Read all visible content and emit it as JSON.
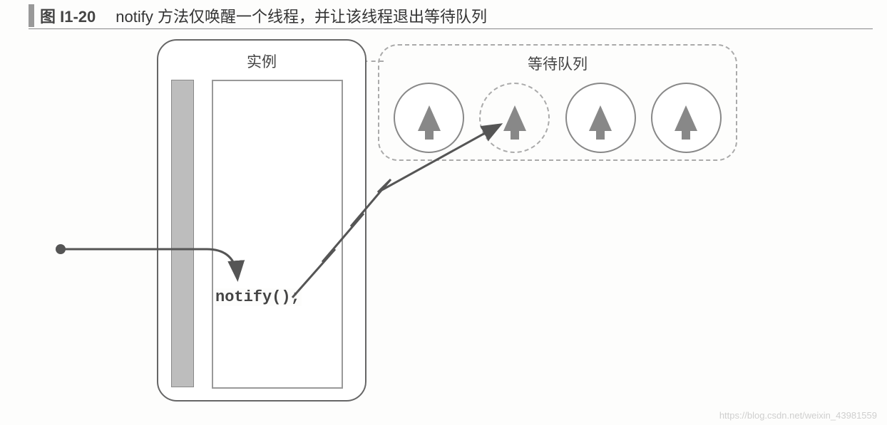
{
  "figure": {
    "number": "图 I1-20",
    "caption": "notify 方法仅唤醒一个线程，并让该线程退出等待队列"
  },
  "instance": {
    "label": "实例",
    "code": "notify();",
    "colors": {
      "border": "#666666",
      "gray_bar": "#bdbdbd",
      "inner_border": "#999999"
    }
  },
  "wait_queue": {
    "label": "等待队列",
    "thread_count": 4,
    "selected_index": 1,
    "colors": {
      "border": "#aaaaaa",
      "thread_fill": "#888888"
    }
  },
  "watermark": "https://blog.csdn.net/weixin_43981559"
}
